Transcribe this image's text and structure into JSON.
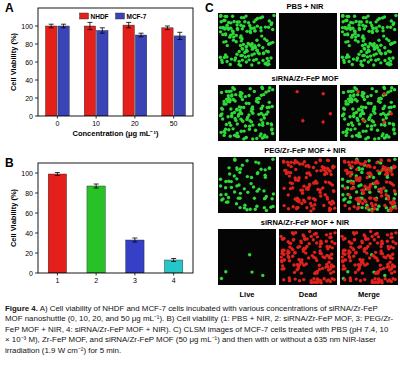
{
  "chart_data": [
    {
      "panel": "A",
      "type": "bar",
      "categories": [
        "0",
        "10",
        "20",
        "50"
      ],
      "x_label": "Concentration (μg mL⁻¹)",
      "y_label": "Cell Viability (%)",
      "series": [
        {
          "name": "NHDF",
          "color": "#e3201c",
          "values": [
            100,
            100,
            101,
            98
          ],
          "errors": [
            2,
            4,
            3,
            2
          ]
        },
        {
          "name": "MCF-7",
          "color": "#3a44b6",
          "values": [
            100,
            95,
            90,
            89
          ],
          "errors": [
            2,
            3,
            2,
            4
          ]
        }
      ],
      "ylim": [
        0,
        120
      ],
      "yticks": [
        0,
        20,
        40,
        60,
        80,
        100
      ],
      "legend": "top"
    },
    {
      "panel": "B",
      "type": "bar",
      "categories": [
        "1",
        "2",
        "3",
        "4"
      ],
      "y_label": "Cell Viability (%)",
      "values": [
        99,
        87,
        33,
        13
      ],
      "errors": [
        1.5,
        2,
        2,
        1.5
      ],
      "colors": [
        "#e3201c",
        "#28c228",
        "#3540c6",
        "#26c6c6"
      ],
      "ylim": [
        0,
        110
      ],
      "yticks": [
        0,
        20,
        40,
        60,
        80,
        100
      ]
    }
  ],
  "panel_c": {
    "panel": "C",
    "rows": [
      "PBS + NIR",
      "siRNA/Zr-FeP MOF",
      "PEG/Zr-FeP MOF + NIR",
      "siRNA/Zr-FeP MOF + NIR"
    ],
    "columns": [
      "Live",
      "Dead",
      "Merge"
    ]
  },
  "caption": {
    "label": "Figure 4.",
    "text": "A) Cell viability of NHDF and MCF-7 cells incubated with various concentrations of siRNA/Zr-FeP MOF nanoshuttle (0, 10, 20, and 50 μg mL⁻¹). B) Cell viability (1: PBS + NIR, 2: siRNA/Zr-FeP MOF, 3: PEG/Zr-FeP MOF + NIR, 4: siRNA/Zr-FeP MOF + NIR). C) CLSM images of MCF-7 cells treated with PBS (pH 7.4, 10 × 10⁻³ M), Zr-FeP MOF, and siRNA/Zr-FeP MOF (50 μg mL⁻¹) and then with or without a 635 nm NIR-laser irradiation (1.9 W cm⁻²) for 5 min."
  }
}
